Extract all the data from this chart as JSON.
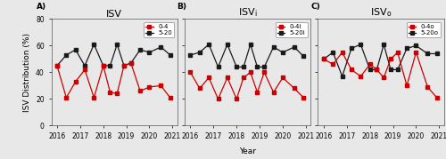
{
  "panels": [
    {
      "label": "A)",
      "title": "ISV",
      "legend_0_4": "0-4",
      "legend_5_20": "5-20",
      "black_series": [
        45,
        53,
        57,
        45,
        61,
        45,
        45,
        61,
        45,
        47,
        57,
        55,
        59,
        53
      ],
      "red_series": [
        45,
        21,
        33,
        42,
        21,
        45,
        25,
        24,
        45,
        47,
        26,
        29,
        30,
        21
      ],
      "x": [
        2016.0,
        2016.4,
        2016.8,
        2017.2,
        2017.6,
        2018.0,
        2018.3,
        2018.6,
        2018.9,
        2019.2,
        2019.6,
        2020.0,
        2020.5,
        2020.9
      ]
    },
    {
      "label": "B)",
      "title": "ISV",
      "title_sub": "i",
      "legend_0_4": "0-4i",
      "legend_5_20": "5-20i",
      "black_series": [
        53,
        55,
        61,
        44,
        61,
        44,
        44,
        61,
        44,
        44,
        59,
        55,
        59,
        52
      ],
      "red_series": [
        40,
        28,
        36,
        20,
        36,
        20,
        36,
        40,
        25,
        40,
        25,
        36,
        28,
        21
      ],
      "x": [
        2016.0,
        2016.4,
        2016.8,
        2017.2,
        2017.6,
        2018.0,
        2018.3,
        2018.6,
        2018.9,
        2019.2,
        2019.6,
        2020.0,
        2020.5,
        2020.9
      ]
    },
    {
      "label": "C)",
      "title": "ISV",
      "title_sub": "o",
      "legend_0_4": "0-4o",
      "legend_5_20": "5-20o",
      "black_series": [
        50,
        55,
        37,
        58,
        61,
        42,
        42,
        61,
        42,
        42,
        58,
        60,
        54,
        54
      ],
      "red_series": [
        50,
        46,
        55,
        42,
        37,
        46,
        42,
        36,
        50,
        55,
        30,
        55,
        29,
        21
      ],
      "x": [
        2016.0,
        2016.4,
        2016.8,
        2017.2,
        2017.6,
        2018.0,
        2018.3,
        2018.6,
        2018.9,
        2019.2,
        2019.6,
        2020.0,
        2020.5,
        2020.9
      ]
    }
  ],
  "x_ticks": [
    2016,
    2017,
    2018,
    2019,
    2020,
    2021
  ],
  "ylim": [
    0,
    80
  ],
  "yticks": [
    0,
    20,
    40,
    60,
    80
  ],
  "ylabel": "ISV Distribution (%)",
  "xlabel": "Year",
  "bg_color": "#e8e8e8",
  "panel_bg": "#e8e8e8",
  "line_color_black": "#1a1a1a",
  "line_color_red": "#cc0000",
  "marker": "s",
  "markersize": 2.5,
  "linewidth": 0.9,
  "title_fontsize": 8,
  "tick_fontsize": 5.5,
  "label_fontsize": 6.5,
  "legend_fontsize": 5
}
